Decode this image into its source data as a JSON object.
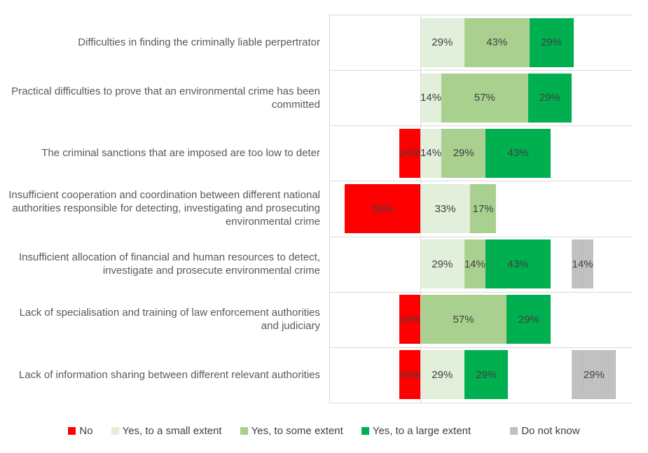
{
  "chart_data": {
    "type": "bar",
    "variant": "horizontal-diverging-stacked-percent",
    "title": "",
    "axis": {
      "min": -60,
      "max": 140,
      "baseline": 0,
      "dk_start": 100,
      "grid": "horizontal-row-separators"
    },
    "colors": {
      "no": "#FF0000",
      "small": "#E2EFDA",
      "some": "#A9D08E",
      "large": "#00B050",
      "dk": "#BFBFBF",
      "dk_pattern": "vertical-hatch",
      "gridline": "#D9D9D9",
      "category_text": "#595959",
      "data_label_text": "#404040"
    },
    "legend": [
      {
        "key": "no",
        "label": "No"
      },
      {
        "key": "small",
        "label": "Yes, to a small extent"
      },
      {
        "key": "some",
        "label": "Yes, to some extent"
      },
      {
        "key": "large",
        "label": "Yes, to a large extent"
      },
      {
        "key": "dk",
        "label": "Do not know"
      }
    ],
    "rows": [
      {
        "category": "Difficulties in finding the criminally liable perpertrator",
        "segments": [
          {
            "series": "small",
            "value": 29,
            "label": "29%"
          },
          {
            "series": "some",
            "value": 43,
            "label": "43%"
          },
          {
            "series": "large",
            "value": 29,
            "label": "29%"
          }
        ]
      },
      {
        "category": "Practical difficulties to prove that an environmental crime has been committed",
        "segments": [
          {
            "series": "small",
            "value": 14,
            "label": "14%"
          },
          {
            "series": "some",
            "value": 57,
            "label": "57%"
          },
          {
            "series": "large",
            "value": 29,
            "label": "29%"
          }
        ]
      },
      {
        "category": "The criminal sanctions that are imposed are too low to deter",
        "segments": [
          {
            "series": "no",
            "value": 14,
            "label": "14%"
          },
          {
            "series": "small",
            "value": 14,
            "label": "14%"
          },
          {
            "series": "some",
            "value": 29,
            "label": "29%"
          },
          {
            "series": "large",
            "value": 43,
            "label": "43%"
          }
        ]
      },
      {
        "category": "Insufficient cooperation and coordination between different national authorities responsible for detecting, investigating and prosecuting environmental crime",
        "segments": [
          {
            "series": "no",
            "value": 50,
            "label": "50%"
          },
          {
            "series": "small",
            "value": 33,
            "label": "33%"
          },
          {
            "series": "some",
            "value": 17,
            "label": "17%"
          }
        ]
      },
      {
        "category": "Insufficient allocation of financial and human resources to detect, investigate and prosecute environmental crime",
        "segments": [
          {
            "series": "small",
            "value": 29,
            "label": "29%"
          },
          {
            "series": "some",
            "value": 14,
            "label": "14%"
          },
          {
            "series": "large",
            "value": 43,
            "label": "43%"
          },
          {
            "series": "dk",
            "value": 14,
            "label": "14%"
          }
        ]
      },
      {
        "category": "Lack of specialisation and training of law enforcement authorities and judiciary",
        "segments": [
          {
            "series": "no",
            "value": 14,
            "label": "14%"
          },
          {
            "series": "some",
            "value": 57,
            "label": "57%"
          },
          {
            "series": "large",
            "value": 29,
            "label": "29%"
          }
        ]
      },
      {
        "category": "Lack of information sharing between different relevant authorities",
        "segments": [
          {
            "series": "no",
            "value": 14,
            "label": "14%"
          },
          {
            "series": "small",
            "value": 29,
            "label": "29%"
          },
          {
            "series": "large",
            "value": 29,
            "label": "29%"
          },
          {
            "series": "dk",
            "value": 29,
            "label": "29%"
          }
        ]
      }
    ]
  }
}
